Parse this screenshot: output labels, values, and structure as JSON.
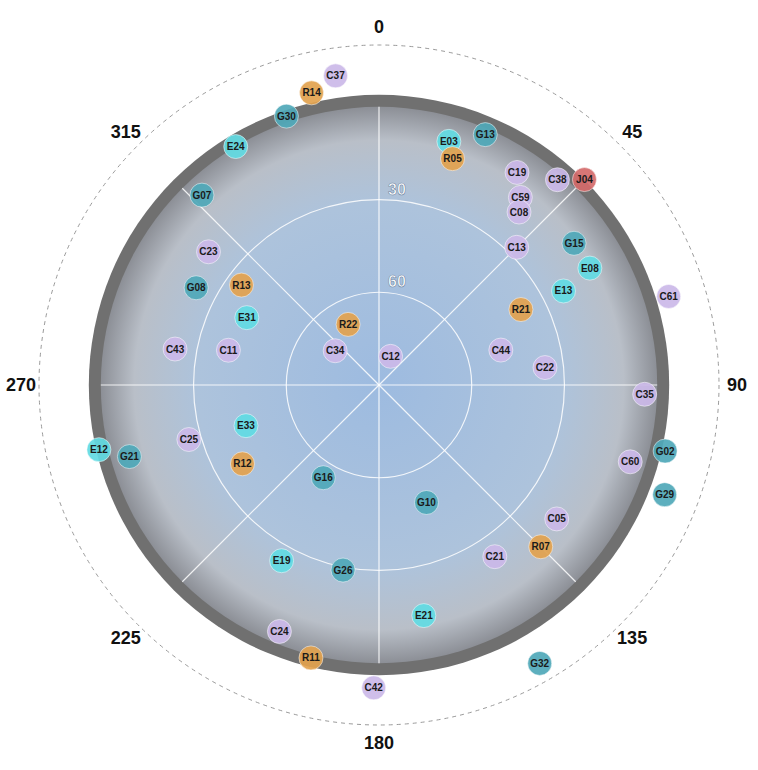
{
  "chart_data": {
    "type": "scatter",
    "rlim": [
      90,
      -20
    ],
    "rticks": [
      30,
      60
    ],
    "angle_ticks": [
      0,
      45,
      90,
      135,
      180,
      225,
      270,
      315
    ],
    "grid": true,
    "tick_labels": true,
    "series": [
      {
        "color": "#4fa8b8",
        "points": [
          {
            "label": "G30",
            "az": 341,
            "el": -2
          },
          {
            "label": "G13",
            "az": 23,
            "el": 2
          },
          {
            "label": "G07",
            "az": 317,
            "el": 6
          },
          {
            "label": "G15",
            "az": 54,
            "el": 12
          },
          {
            "label": "G08",
            "az": 298,
            "el": 23
          },
          {
            "label": "G02",
            "az": 103,
            "el": -5
          },
          {
            "label": "G29",
            "az": 111,
            "el": -9
          },
          {
            "label": "G21",
            "az": 254,
            "el": 6
          },
          {
            "label": "G16",
            "az": 211,
            "el": 55
          },
          {
            "label": "G10",
            "az": 158,
            "el": 49
          },
          {
            "label": "G26",
            "az": 191,
            "el": 29
          },
          {
            "label": "G32",
            "az": 150,
            "el": -14
          }
        ]
      },
      {
        "color": "#62dbe3",
        "points": [
          {
            "label": "E03",
            "az": 16,
            "el": 8
          },
          {
            "label": "E24",
            "az": 329,
            "el": 0
          },
          {
            "label": "E08",
            "az": 61,
            "el": 12
          },
          {
            "label": "E13",
            "az": 63,
            "el": 23
          },
          {
            "label": "E31",
            "az": 297,
            "el": 42
          },
          {
            "label": "E12",
            "az": 257,
            "el": -3
          },
          {
            "label": "E33",
            "az": 253,
            "el": 45
          },
          {
            "label": "E19",
            "az": 209,
            "el": 25
          },
          {
            "label": "E21",
            "az": 169,
            "el": 14
          }
        ]
      },
      {
        "color": "#e2a24e",
        "points": [
          {
            "label": "R14",
            "az": 347,
            "el": -7
          },
          {
            "label": "R05",
            "az": 18,
            "el": 13
          },
          {
            "label": "R21",
            "az": 62,
            "el": 38
          },
          {
            "label": "R13",
            "az": 306,
            "el": 35
          },
          {
            "label": "R22",
            "az": 333,
            "el": 68
          },
          {
            "label": "R12",
            "az": 240,
            "el": 39
          },
          {
            "label": "R07",
            "az": 135,
            "el": 16
          },
          {
            "label": "R11",
            "az": 194,
            "el": -1
          }
        ]
      },
      {
        "color": "#cbb9e8",
        "points": [
          {
            "label": "C37",
            "az": 352,
            "el": -11
          },
          {
            "label": "C19",
            "az": 33,
            "el": 8
          },
          {
            "label": "C59",
            "az": 37,
            "el": 14
          },
          {
            "label": "C38",
            "az": 41,
            "el": 2
          },
          {
            "label": "C08",
            "az": 39,
            "el": 18
          },
          {
            "label": "C13",
            "az": 45,
            "el": 27
          },
          {
            "label": "C61",
            "az": 73,
            "el": -8
          },
          {
            "label": "C23",
            "az": 308,
            "el": 20
          },
          {
            "label": "C43",
            "az": 280,
            "el": 23
          },
          {
            "label": "C11",
            "az": 283,
            "el": 40
          },
          {
            "label": "C34",
            "az": 308,
            "el": 72
          },
          {
            "label": "C12",
            "az": 22,
            "el": 80
          },
          {
            "label": "C44",
            "az": 74,
            "el": 49
          },
          {
            "label": "C22",
            "az": 84,
            "el": 36
          },
          {
            "label": "C35",
            "az": 92,
            "el": 4
          },
          {
            "label": "C60",
            "az": 107,
            "el": 5
          },
          {
            "label": "C25",
            "az": 254,
            "el": 26
          },
          {
            "label": "C05",
            "az": 127,
            "el": 18
          },
          {
            "label": "C21",
            "az": 146,
            "el": 23
          },
          {
            "label": "C24",
            "az": 202,
            "el": 4
          },
          {
            "label": "C42",
            "az": 181,
            "el": -8
          }
        ]
      },
      {
        "color": "#d46a6a",
        "points": [
          {
            "label": "J04",
            "az": 45,
            "el": -4
          }
        ]
      }
    ]
  }
}
